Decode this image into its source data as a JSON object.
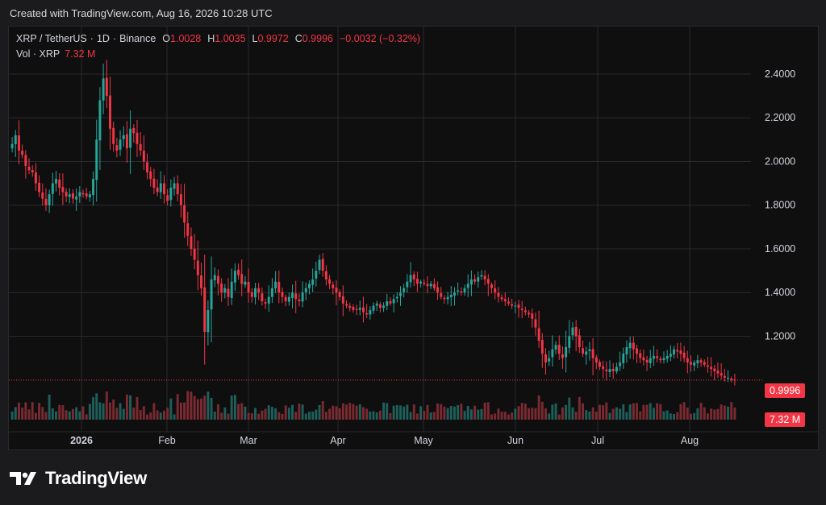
{
  "header": {
    "caption": "Created with TradingView.com, Aug 16, 2026 10:28 UTC"
  },
  "legend": {
    "symbol": "XRP / TetherUS",
    "interval": "1D",
    "exchange": "Binance",
    "open_label": "O",
    "open": "1.0028",
    "high_label": "H",
    "high": "1.0035",
    "low_label": "L",
    "low": "0.9972",
    "close_label": "C",
    "close": "0.9996",
    "change": "−0.0032 (−0.32%)",
    "vol_label": "Vol · XRP",
    "vol_value": "7.32 M"
  },
  "footer": {
    "brand": "TradingView",
    "logo_icon": "tradingview-logo-icon"
  },
  "colors": {
    "up": "#26a69a",
    "down": "#f23645",
    "vol_up": "#1e5f5a",
    "vol_down": "#7a2a30",
    "grid": "#2a2a2e",
    "axis_text": "#d1d4dc"
  },
  "chart_data": {
    "type": "candlestick",
    "x_ticks": [
      "2026",
      "Feb",
      "Mar",
      "Apr",
      "May",
      "Jun",
      "Jul",
      "Aug"
    ],
    "y_ticks": [
      "1.2000",
      "1.4000",
      "1.6000",
      "1.8000",
      "2.0000",
      "2.2000",
      "2.4000"
    ],
    "ylim": [
      0.94,
      2.47
    ],
    "last_price_label": "0.9996",
    "last_volume_label": "7.32 M",
    "close_series": [
      2.08,
      2.12,
      2.05,
      2.03,
      1.98,
      1.96,
      1.95,
      1.9,
      1.86,
      1.83,
      1.8,
      1.85,
      1.9,
      1.92,
      1.88,
      1.86,
      1.84,
      1.85,
      1.83,
      1.84,
      1.86,
      1.85,
      1.84,
      1.85,
      1.92,
      2.1,
      2.28,
      2.38,
      2.3,
      2.15,
      2.08,
      2.05,
      2.1,
      2.12,
      2.06,
      2.15,
      2.13,
      2.08,
      2.05,
      2.0,
      1.95,
      1.92,
      1.88,
      1.86,
      1.9,
      1.85,
      1.82,
      1.88,
      1.9,
      1.85,
      1.8,
      1.72,
      1.66,
      1.6,
      1.55,
      1.48,
      1.42,
      1.22,
      1.32,
      1.46,
      1.48,
      1.44,
      1.4,
      1.42,
      1.38,
      1.45,
      1.5,
      1.48,
      1.44,
      1.45,
      1.4,
      1.38,
      1.42,
      1.4,
      1.36,
      1.35,
      1.38,
      1.42,
      1.45,
      1.4,
      1.38,
      1.36,
      1.38,
      1.4,
      1.37,
      1.36,
      1.4,
      1.42,
      1.44,
      1.46,
      1.5,
      1.55,
      1.5,
      1.46,
      1.44,
      1.42,
      1.4,
      1.38,
      1.35,
      1.34,
      1.33,
      1.32,
      1.32,
      1.33,
      1.31,
      1.3,
      1.32,
      1.34,
      1.35,
      1.33,
      1.34,
      1.36,
      1.35,
      1.37,
      1.38,
      1.4,
      1.42,
      1.45,
      1.48,
      1.46,
      1.44,
      1.45,
      1.44,
      1.43,
      1.44,
      1.42,
      1.4,
      1.38,
      1.37,
      1.38,
      1.39,
      1.4,
      1.41,
      1.4,
      1.42,
      1.44,
      1.46,
      1.45,
      1.47,
      1.48,
      1.46,
      1.44,
      1.42,
      1.4,
      1.38,
      1.37,
      1.36,
      1.35,
      1.34,
      1.34,
      1.33,
      1.32,
      1.31,
      1.3,
      1.28,
      1.24,
      1.18,
      1.12,
      1.08,
      1.1,
      1.14,
      1.16,
      1.12,
      1.1,
      1.15,
      1.2,
      1.24,
      1.2,
      1.15,
      1.12,
      1.13,
      1.14,
      1.1,
      1.08,
      1.06,
      1.05,
      1.04,
      1.05,
      1.04,
      1.06,
      1.08,
      1.12,
      1.15,
      1.17,
      1.14,
      1.12,
      1.1,
      1.09,
      1.08,
      1.1,
      1.11,
      1.1,
      1.09,
      1.1,
      1.11,
      1.12,
      1.14,
      1.13,
      1.12,
      1.1,
      1.08,
      1.07,
      1.08,
      1.09,
      1.08,
      1.07,
      1.06,
      1.05,
      1.04,
      1.03,
      1.02,
      1.01,
      1.01,
      1.0,
      1.0
    ]
  }
}
